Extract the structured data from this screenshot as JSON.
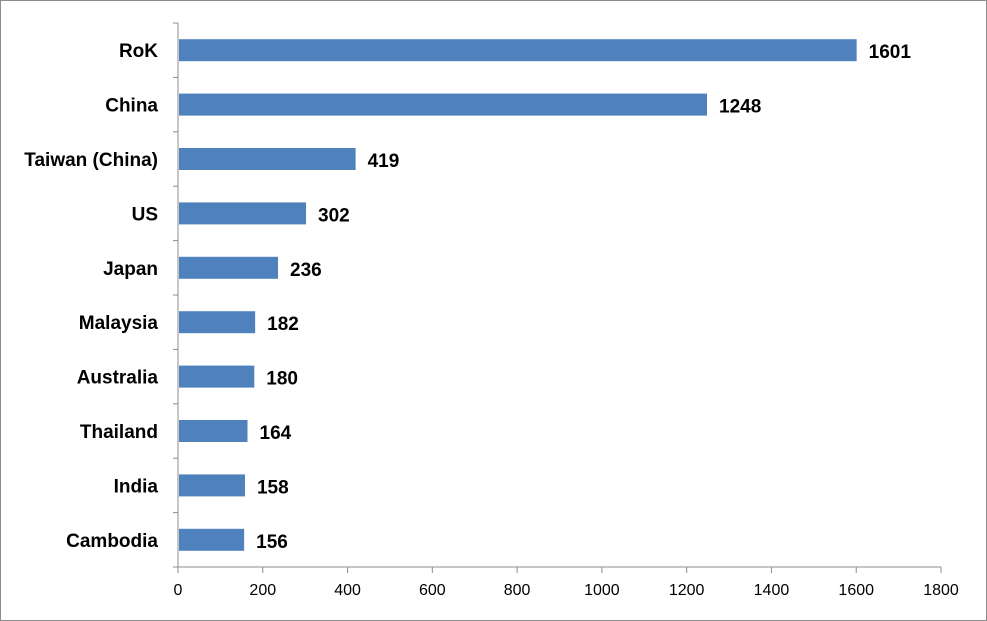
{
  "chart_data": {
    "type": "bar",
    "orientation": "horizontal",
    "title": "",
    "xlabel": "",
    "ylabel": "",
    "categories": [
      "RoK",
      "China",
      "Taiwan (China)",
      "US",
      "Japan",
      "Malaysia",
      "Australia",
      "Thailand",
      "India",
      "Cambodia"
    ],
    "values": [
      1601,
      1248,
      419,
      302,
      236,
      182,
      180,
      164,
      158,
      156
    ],
    "xlim": [
      0,
      1800
    ],
    "xticks": [
      0,
      200,
      400,
      600,
      800,
      1000,
      1200,
      1400,
      1600,
      1800
    ],
    "grid": false,
    "legend": "none",
    "bar_color": "#4f81bd",
    "data_labels": true
  }
}
